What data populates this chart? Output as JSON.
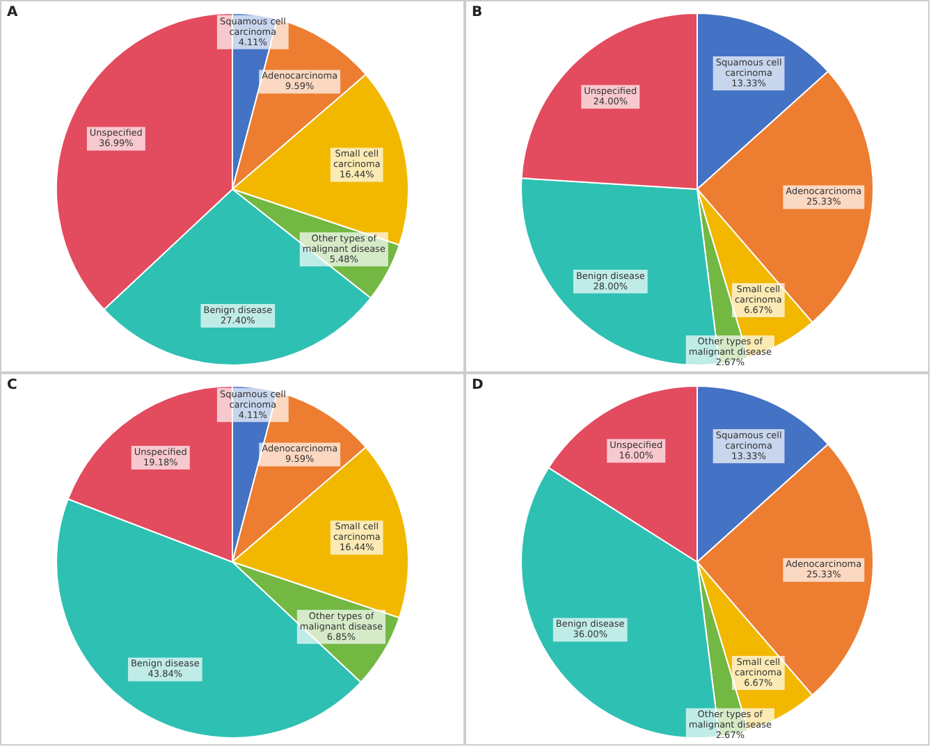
{
  "chart_data": [
    {
      "type": "pie",
      "title": "A",
      "categories": [
        "Squamous cell carcinoma",
        "Adenocarcinoma",
        "Small cell carcinoma",
        "Other types of malignant disease",
        "Benign disease",
        "Unspecified"
      ],
      "values": [
        4.11,
        9.59,
        16.44,
        5.48,
        27.4,
        36.99
      ],
      "value_labels": [
        "4.11%",
        "9.59%",
        "16.44%",
        "5.48%",
        "27.40%",
        "36.99%"
      ],
      "colors": [
        "#4472c4",
        "#ed7d31",
        "#f2b800",
        "#72b843",
        "#2ec0b3",
        "#e34b5e"
      ]
    },
    {
      "type": "pie",
      "title": "B",
      "categories": [
        "Squamous cell carcinoma",
        "Adenocarcinoma",
        "Small cell carcinoma",
        "Other types of malignant disease",
        "Benign disease",
        "Unspecified"
      ],
      "values": [
        13.33,
        25.33,
        6.67,
        2.67,
        28.0,
        24.0
      ],
      "value_labels": [
        "13.33%",
        "25.33%",
        "6.67%",
        "2.67%",
        "28.00%",
        "24.00%"
      ],
      "colors": [
        "#4472c4",
        "#ed7d31",
        "#f2b800",
        "#72b843",
        "#2ec0b3",
        "#e34b5e"
      ]
    },
    {
      "type": "pie",
      "title": "C",
      "categories": [
        "Squamous cell carcinoma",
        "Adenocarcinoma",
        "Small cell carcinoma",
        "Other types of malignant disease",
        "Benign disease",
        "Unspecified"
      ],
      "values": [
        4.11,
        9.59,
        16.44,
        6.85,
        43.84,
        19.18
      ],
      "value_labels": [
        "4.11%",
        "9.59%",
        "16.44%",
        "6.85%",
        "43.84%",
        "19.18%"
      ],
      "colors": [
        "#4472c4",
        "#ed7d31",
        "#f2b800",
        "#72b843",
        "#2ec0b3",
        "#e34b5e"
      ]
    },
    {
      "type": "pie",
      "title": "D",
      "categories": [
        "Squamous cell carcinoma",
        "Adenocarcinoma",
        "Small cell carcinoma",
        "Other types of malignant disease",
        "Benign disease",
        "Unspecified"
      ],
      "values": [
        13.33,
        25.33,
        6.67,
        2.67,
        36.0,
        16.0
      ],
      "value_labels": [
        "13.33%",
        "25.33%",
        "6.67%",
        "2.67%",
        "36.00%",
        "16.00%"
      ],
      "colors": [
        "#4472c4",
        "#ed7d31",
        "#f2b800",
        "#72b843",
        "#2ec0b3",
        "#e34b5e"
      ]
    }
  ]
}
